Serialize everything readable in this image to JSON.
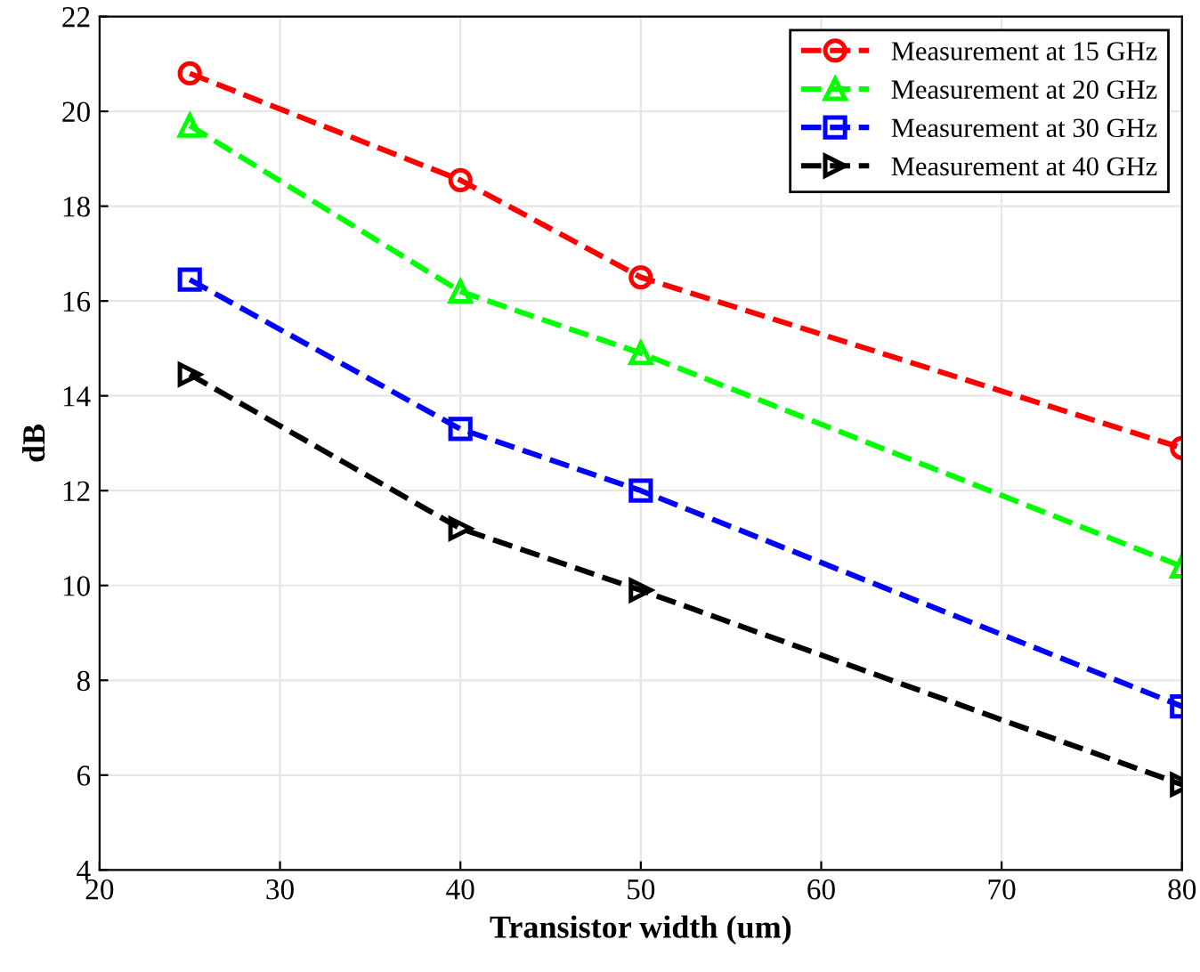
{
  "chart_data": {
    "type": "line",
    "xlabel": "Transistor width (um)",
    "ylabel": "dB",
    "x": [
      25,
      40,
      50,
      80
    ],
    "series": [
      {
        "name": "Measurement at 15 GHz",
        "color": "#ff0000",
        "marker": "circle",
        "values": [
          20.8,
          18.55,
          16.5,
          12.9
        ]
      },
      {
        "name": "Measurement at 20 GHz",
        "color": "#00ff00",
        "marker": "triangle",
        "values": [
          19.7,
          16.2,
          14.9,
          10.4
        ]
      },
      {
        "name": "Measurement at 30 GHz",
        "color": "#0000ff",
        "marker": "square",
        "values": [
          16.45,
          13.3,
          12.0,
          7.45
        ]
      },
      {
        "name": "Measurement at 40 GHz",
        "color": "#000000",
        "marker": "triangle-right",
        "values": [
          14.45,
          11.2,
          9.9,
          5.8
        ]
      }
    ],
    "xlim": [
      20,
      80
    ],
    "xticks": [
      20,
      30,
      40,
      50,
      60,
      70,
      80
    ],
    "ylim": [
      4,
      22
    ],
    "yticks": [
      4,
      6,
      8,
      10,
      12,
      14,
      16,
      18,
      20,
      22
    ],
    "grid": true,
    "legend": "top right",
    "line_style": "dashed"
  }
}
